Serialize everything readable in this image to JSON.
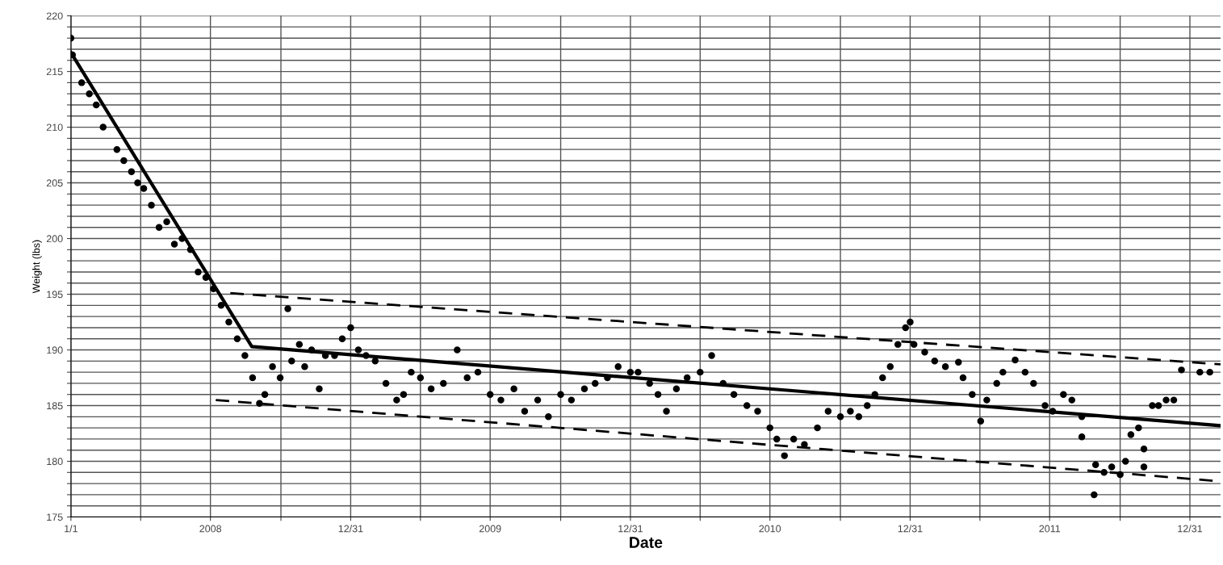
{
  "chart_data": {
    "type": "scatter",
    "xlabel": "Date",
    "ylabel": "Weight (lbs)",
    "grid": true,
    "xlim": [
      "2008-01-01",
      "2012-02-09"
    ],
    "ylim": [
      175,
      220
    ],
    "xticks": [
      {
        "value": "2008-01-01",
        "label": "1/1"
      },
      {
        "value": "2008-04-01",
        "label": null
      },
      {
        "value": "2008-07-01",
        "label": "2008"
      },
      {
        "value": "2008-10-01",
        "label": null
      },
      {
        "value": "2008-12-31",
        "label": "12/31"
      },
      {
        "value": "2009-04-01",
        "label": null
      },
      {
        "value": "2009-07-01",
        "label": "2009"
      },
      {
        "value": "2009-10-01",
        "label": null
      },
      {
        "value": "2009-12-31",
        "label": "12/31"
      },
      {
        "value": "2010-04-01",
        "label": null
      },
      {
        "value": "2010-07-01",
        "label": "2010"
      },
      {
        "value": "2010-10-01",
        "label": null
      },
      {
        "value": "2010-12-31",
        "label": "12/31"
      },
      {
        "value": "2011-04-01",
        "label": null
      },
      {
        "value": "2011-07-01",
        "label": "2011"
      },
      {
        "value": "2011-10-01",
        "label": null
      },
      {
        "value": "2011-12-31",
        "label": "12/31"
      }
    ],
    "yticks": [
      175,
      {
        "value": 176,
        "label": null
      },
      {
        "value": 177,
        "label": null
      },
      {
        "value": 178,
        "label": null
      },
      {
        "value": 179,
        "label": null
      },
      180,
      {
        "value": 181,
        "label": null
      },
      {
        "value": 182,
        "label": null
      },
      {
        "value": 183,
        "label": null
      },
      {
        "value": 184,
        "label": null
      },
      185,
      {
        "value": 186,
        "label": null
      },
      {
        "value": 187,
        "label": null
      },
      {
        "value": 188,
        "label": null
      },
      {
        "value": 189,
        "label": null
      },
      190,
      {
        "value": 191,
        "label": null
      },
      {
        "value": 192,
        "label": null
      },
      {
        "value": 193,
        "label": null
      },
      {
        "value": 194,
        "label": null
      },
      195,
      {
        "value": 196,
        "label": null
      },
      {
        "value": 197,
        "label": null
      },
      {
        "value": 198,
        "label": null
      },
      {
        "value": 199,
        "label": null
      },
      200,
      {
        "value": 201,
        "label": null
      },
      {
        "value": 202,
        "label": null
      },
      {
        "value": 203,
        "label": null
      },
      {
        "value": 204,
        "label": null
      },
      205,
      {
        "value": 206,
        "label": null
      },
      {
        "value": 207,
        "label": null
      },
      {
        "value": 208,
        "label": null
      },
      {
        "value": 209,
        "label": null
      },
      210,
      {
        "value": 211,
        "label": null
      },
      {
        "value": 212,
        "label": null
      },
      {
        "value": 213,
        "label": null
      },
      {
        "value": 214,
        "label": null
      },
      215,
      {
        "value": 216,
        "label": null
      },
      {
        "value": 217,
        "label": null
      },
      {
        "value": 218,
        "label": null
      },
      {
        "value": 219,
        "label": null
      },
      220
    ],
    "series": [
      {
        "marker": "circle",
        "color": "#000000",
        "x": [
          "2008-01-01",
          "2008-01-03",
          "2008-01-15",
          "2008-01-25",
          "2008-02-03",
          "2008-02-12",
          "2008-03-01",
          "2008-03-10",
          "2008-03-20",
          "2008-03-28",
          "2008-04-05",
          "2008-04-15",
          "2008-04-25",
          "2008-05-05",
          "2008-05-15",
          "2008-05-25",
          "2008-06-05",
          "2008-06-15",
          "2008-06-25",
          "2008-07-05",
          "2008-07-15",
          "2008-07-25",
          "2008-08-05",
          "2008-08-15",
          "2008-08-25",
          "2008-09-03",
          "2008-09-10",
          "2008-09-20",
          "2008-09-30",
          "2008-10-10",
          "2008-10-15",
          "2008-10-25",
          "2008-11-01",
          "2008-11-10",
          "2008-11-20",
          "2008-11-28",
          "2008-12-10",
          "2008-12-20",
          "2008-12-31",
          "2009-01-10",
          "2009-01-20",
          "2009-02-01",
          "2009-02-15",
          "2009-03-01",
          "2009-03-10",
          "2009-03-20",
          "2009-04-01",
          "2009-04-15",
          "2009-05-01",
          "2009-05-19",
          "2009-06-01",
          "2009-06-15",
          "2009-07-01",
          "2009-07-15",
          "2009-08-01",
          "2009-08-15",
          "2009-09-01",
          "2009-09-15",
          "2009-10-01",
          "2009-10-15",
          "2009-11-01",
          "2009-11-15",
          "2009-12-01",
          "2009-12-15",
          "2009-12-31",
          "2010-01-10",
          "2010-01-25",
          "2010-02-05",
          "2010-02-16",
          "2010-03-01",
          "2010-03-15",
          "2010-04-01",
          "2010-04-16",
          "2010-05-01",
          "2010-05-15",
          "2010-06-01",
          "2010-06-15",
          "2010-07-01",
          "2010-07-10",
          "2010-07-20",
          "2010-08-01",
          "2010-08-15",
          "2010-09-01",
          "2010-09-15",
          "2010-10-01",
          "2010-10-14",
          "2010-10-25",
          "2010-11-05",
          "2010-11-15",
          "2010-11-25",
          "2010-12-05",
          "2010-12-15",
          "2010-12-25",
          "2010-12-31",
          "2011-01-05",
          "2011-01-19",
          "2011-02-01",
          "2011-02-15",
          "2011-03-04",
          "2011-03-10",
          "2011-03-22",
          "2011-04-02",
          "2011-04-10",
          "2011-04-23",
          "2011-05-01",
          "2011-05-17",
          "2011-05-30",
          "2011-06-10",
          "2011-06-25",
          "2011-07-05",
          "2011-07-19",
          "2011-07-30",
          "2011-08-12",
          "2011-08-12",
          "2011-08-28",
          "2011-08-30",
          "2011-09-10",
          "2011-09-20",
          "2011-10-01",
          "2011-10-08",
          "2011-10-15",
          "2011-10-25",
          "2011-11-01",
          "2011-11-01",
          "2011-11-12",
          "2011-11-20",
          "2011-11-30",
          "2011-12-10",
          "2011-12-20",
          "2012-01-13",
          "2012-01-26"
        ],
        "values": [
          218,
          216.5,
          214,
          213,
          212,
          210,
          208,
          207,
          206,
          205,
          204.5,
          203,
          201,
          201.5,
          199.5,
          200,
          199,
          197,
          196.5,
          195.5,
          194,
          192.5,
          191,
          189.5,
          187.5,
          185.2,
          186,
          188.5,
          187.5,
          193.7,
          189,
          190.5,
          188.5,
          190,
          186.5,
          189.5,
          189.5,
          191,
          192,
          190,
          189.5,
          189,
          187,
          185.5,
          186,
          188,
          187.5,
          186.5,
          187,
          190,
          187.5,
          188,
          186,
          185.5,
          186.5,
          184.5,
          185.5,
          184,
          186,
          185.5,
          186.5,
          187,
          187.5,
          188.5,
          188,
          188,
          187,
          186,
          184.5,
          186.5,
          187.5,
          188,
          189.5,
          187,
          186,
          185,
          184.5,
          183,
          182,
          180.5,
          182,
          181.5,
          183,
          184.5,
          184,
          184.5,
          184,
          185,
          186,
          187.5,
          188.5,
          190.5,
          192,
          192.5,
          190.5,
          189.8,
          189,
          188.5,
          188.9,
          187.5,
          186,
          183.6,
          185.5,
          187,
          188,
          189.1,
          188,
          187,
          185,
          184.5,
          186,
          185.5,
          184,
          182.2,
          177,
          179.7,
          179,
          179.5,
          178.8,
          180,
          182.4,
          183,
          181.1,
          179.5,
          185,
          185,
          185.5,
          185.5,
          188.2,
          188,
          188
        ]
      },
      {
        "type": "line",
        "line_style": "solid",
        "color": "#000000",
        "x": [
          "2008-01-01",
          "2008-08-24",
          "2012-02-09"
        ],
        "values": [
          216.7,
          190.3,
          183.2
        ]
      },
      {
        "type": "line",
        "line_style": "dashed",
        "color": "#000000",
        "x": [
          "2008-07-27",
          "2012-02-09"
        ],
        "values": [
          195.1,
          188.7
        ]
      },
      {
        "type": "line",
        "line_style": "dashed",
        "color": "#000000",
        "x": [
          "2008-07-08",
          "2012-02-09"
        ],
        "values": [
          185.5,
          178.2
        ]
      }
    ]
  }
}
